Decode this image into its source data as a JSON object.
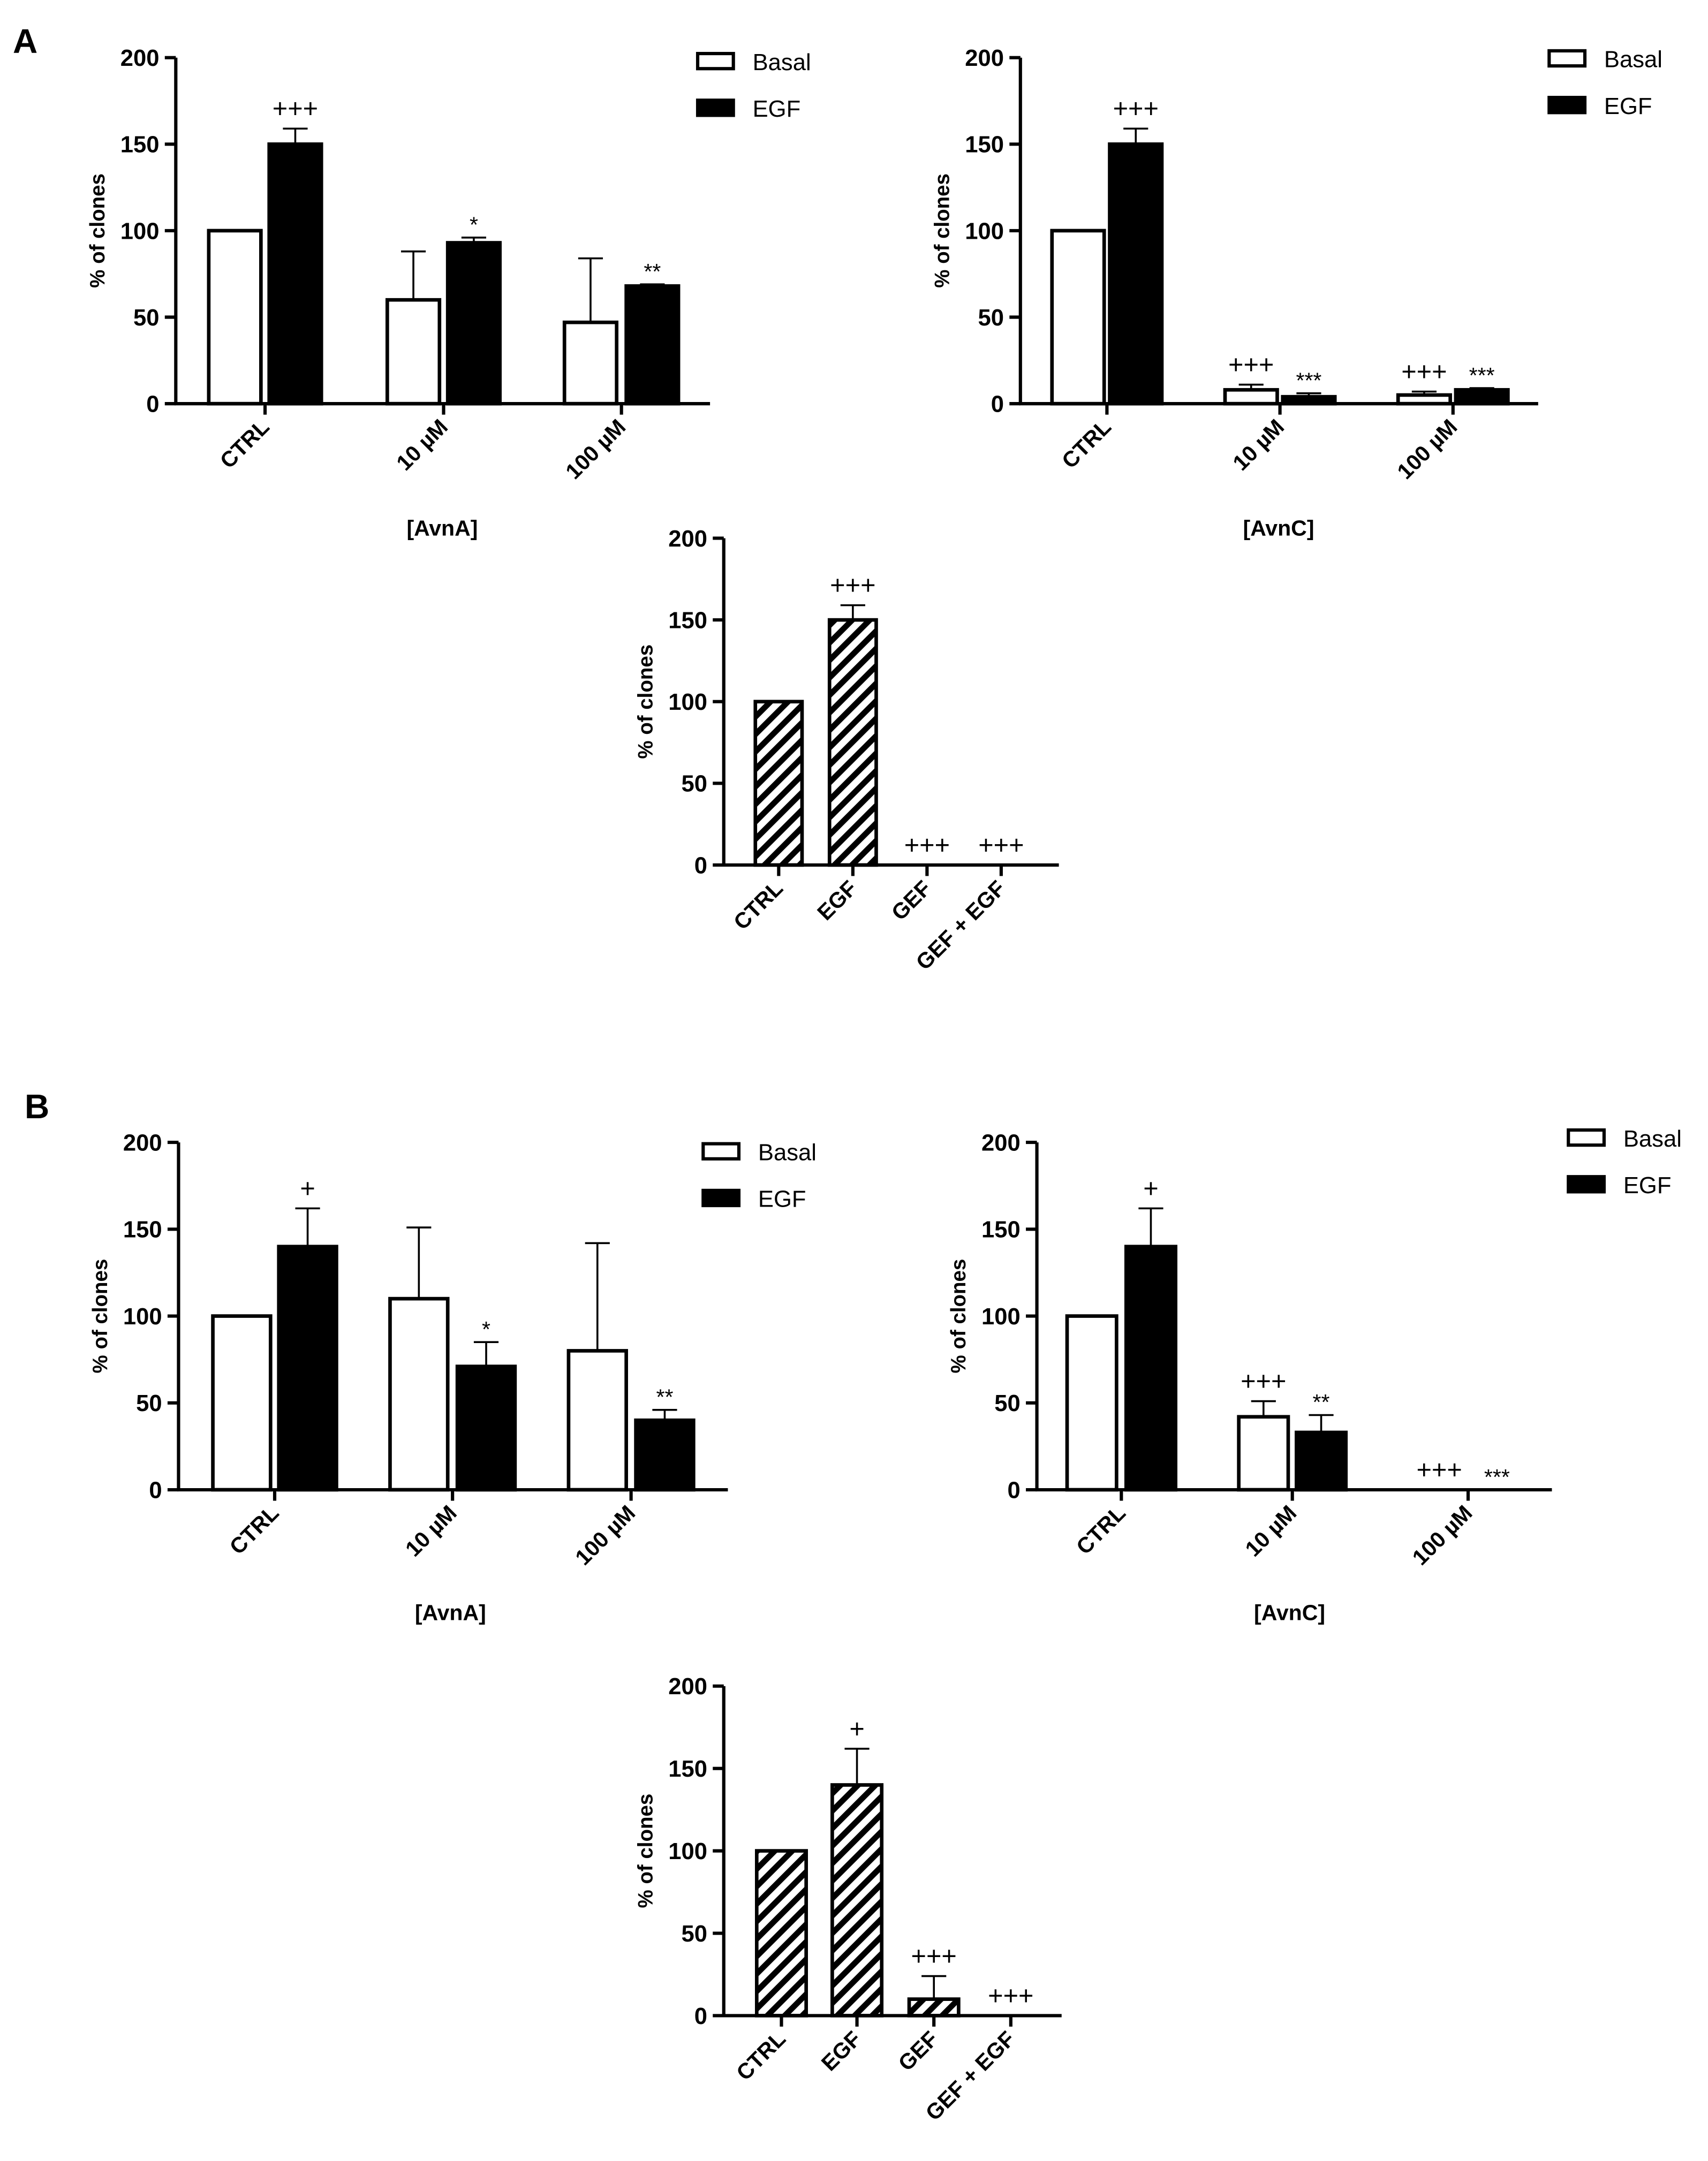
{
  "panels": [
    {
      "label": "A"
    },
    {
      "label": "B"
    }
  ],
  "colors": {
    "basal": "#ffffff",
    "egf": "#000000",
    "stroke": "#000000"
  },
  "chart_data": [
    {
      "panel": "A",
      "type": "bar",
      "categories": [
        "CTRL",
        "10 µM",
        "100 µM"
      ],
      "xlabel": "[AvnA]",
      "ylabel": "% of clones",
      "ylim": [
        0,
        200
      ],
      "yticks": [
        0,
        50,
        100,
        150,
        200
      ],
      "legend": "top-right",
      "series": [
        {
          "name": "Basal",
          "fill": "white",
          "values": [
            100,
            60,
            47
          ],
          "errors": [
            0,
            28,
            37
          ],
          "annotations": [
            "",
            "",
            ""
          ]
        },
        {
          "name": "EGF",
          "fill": "black",
          "values": [
            150,
            93,
            68
          ],
          "errors": [
            9,
            3,
            1
          ],
          "annotations": [
            "+++",
            "*",
            "**"
          ]
        }
      ]
    },
    {
      "panel": "A",
      "type": "bar",
      "categories": [
        "CTRL",
        "10 µM",
        "100 µM"
      ],
      "xlabel": "[AvnC]",
      "ylabel": "% of clones",
      "ylim": [
        0,
        200
      ],
      "yticks": [
        0,
        50,
        100,
        150,
        200
      ],
      "legend": "top-right",
      "series": [
        {
          "name": "Basal",
          "fill": "white",
          "values": [
            100,
            8,
            5
          ],
          "errors": [
            0,
            3,
            2
          ],
          "annotations": [
            "",
            "+++",
            "+++"
          ]
        },
        {
          "name": "EGF",
          "fill": "black",
          "values": [
            150,
            4,
            8
          ],
          "errors": [
            9,
            2,
            1
          ],
          "annotations": [
            "+++",
            "***",
            "***"
          ]
        }
      ]
    },
    {
      "panel": "A",
      "type": "bar",
      "categories": [
        "CTRL",
        "EGF",
        "GEF",
        "GEF + EGF"
      ],
      "xlabel": "",
      "ylabel": "% of clones",
      "ylim": [
        0,
        200
      ],
      "yticks": [
        0,
        50,
        100,
        150,
        200
      ],
      "series": [
        {
          "name": "",
          "fill": "hatched",
          "values": [
            100,
            150,
            0,
            0
          ],
          "errors": [
            0,
            9,
            0,
            0
          ],
          "annotations": [
            "",
            "+++",
            "+++",
            "+++"
          ]
        }
      ]
    },
    {
      "panel": "B",
      "type": "bar",
      "categories": [
        "CTRL",
        "10 µM",
        "100 µM"
      ],
      "xlabel": "[AvnA]",
      "ylabel": "% of clones",
      "ylim": [
        0,
        200
      ],
      "yticks": [
        0,
        50,
        100,
        150,
        200
      ],
      "legend": "top-right",
      "series": [
        {
          "name": "Basal",
          "fill": "white",
          "values": [
            100,
            110,
            80
          ],
          "errors": [
            0,
            41,
            62
          ],
          "annotations": [
            "",
            "",
            ""
          ]
        },
        {
          "name": "EGF",
          "fill": "black",
          "values": [
            140,
            71,
            40
          ],
          "errors": [
            22,
            14,
            6
          ],
          "annotations": [
            "+",
            "*",
            "**"
          ]
        }
      ]
    },
    {
      "panel": "B",
      "type": "bar",
      "categories": [
        "CTRL",
        "10 µM",
        "100 µM"
      ],
      "xlabel": "[AvnC]",
      "ylabel": "% of clones",
      "ylim": [
        0,
        200
      ],
      "yticks": [
        0,
        50,
        100,
        150,
        200
      ],
      "legend": "top-right",
      "series": [
        {
          "name": "Basal",
          "fill": "white",
          "values": [
            100,
            42,
            0
          ],
          "errors": [
            0,
            9,
            0
          ],
          "annotations": [
            "",
            "+++",
            "+++"
          ]
        },
        {
          "name": "EGF",
          "fill": "black",
          "values": [
            140,
            33,
            0
          ],
          "errors": [
            22,
            10,
            0
          ],
          "annotations": [
            "+",
            "**",
            "***"
          ]
        }
      ]
    },
    {
      "panel": "B",
      "type": "bar",
      "categories": [
        "CTRL",
        "EGF",
        "GEF",
        "GEF + EGF"
      ],
      "xlabel": "",
      "ylabel": "% of clones",
      "ylim": [
        0,
        200
      ],
      "yticks": [
        0,
        50,
        100,
        150,
        200
      ],
      "series": [
        {
          "name": "",
          "fill": "hatched",
          "values": [
            100,
            140,
            10,
            0
          ],
          "errors": [
            0,
            22,
            14,
            0
          ],
          "annotations": [
            "",
            "+",
            "+++",
            "+++"
          ]
        }
      ]
    }
  ]
}
